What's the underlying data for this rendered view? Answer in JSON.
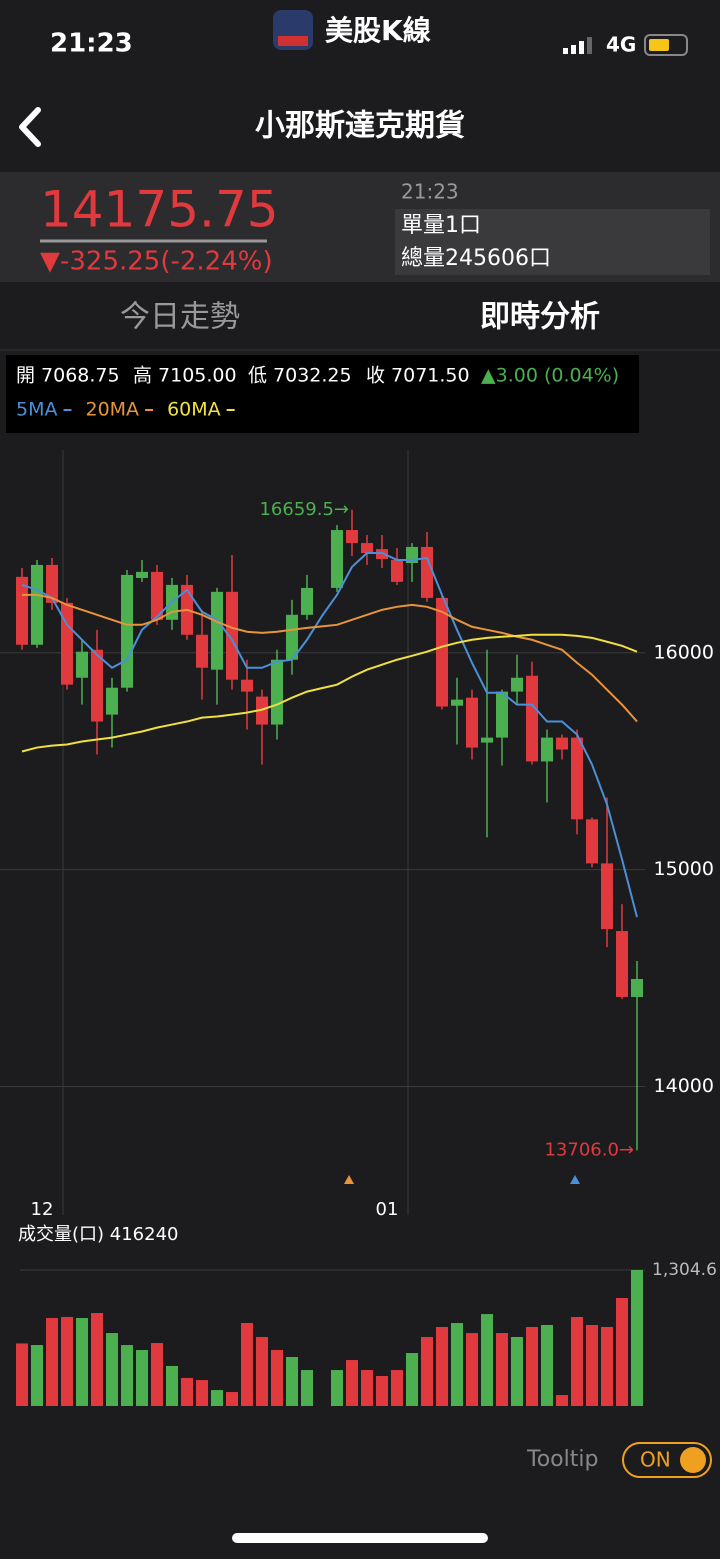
{
  "status_bar": {
    "time": "21:23",
    "app": "美股K線",
    "network": "4G"
  },
  "header": {
    "title": "小那斯達克期貨"
  },
  "quote": {
    "price": "14175.75",
    "change": "▼-325.25(-2.24%)",
    "time": "21:23",
    "unit_volume": "單量1口",
    "total_volume": "總量245606口"
  },
  "tabs": [
    "今日走勢",
    "即時分析"
  ],
  "info": {
    "items": [
      "開 7068.75",
      "高 7105.00",
      "低 7032.25",
      "收 7071.50"
    ],
    "change": "▲3.00 (0.04%)"
  },
  "chart_data": [
    {
      "type": "candlestick",
      "categories": [
        null,
        null,
        null,
        "12",
        null,
        null,
        null,
        null,
        null,
        null,
        null,
        null,
        null,
        null,
        null,
        null,
        null,
        null,
        null,
        null,
        null,
        null,
        null,
        null,
        null,
        null,
        "01",
        null,
        null,
        null,
        null,
        null,
        null,
        null,
        null,
        null,
        null,
        null,
        null,
        null,
        null,
        null
      ],
      "open": [
        16350,
        16037,
        16405,
        16230,
        15885,
        16014,
        15715,
        15839,
        16345,
        16373,
        16152,
        16313,
        16083,
        15922,
        16281,
        15876,
        15798,
        15669,
        15968,
        16175,
        null,
        16299,
        16566,
        16506,
        16478,
        16428,
        16414,
        16488,
        16253,
        15756,
        15793,
        15586,
        15609,
        15821,
        15894,
        15499,
        15609,
        15609,
        15232,
        15029,
        14717,
        14413
      ],
      "high": [
        16391,
        16428,
        16437,
        16253,
        16060,
        16106,
        15885,
        16382,
        16428,
        16405,
        16345,
        16359,
        16198,
        16299,
        16451,
        15968,
        15830,
        16014,
        16244,
        16359,
        null,
        16589,
        16659.5,
        16543,
        16543,
        16483,
        16506,
        16557,
        16267,
        15885,
        15830,
        16014,
        15830,
        15991,
        15959,
        15646,
        15623,
        15646,
        15241,
        15333,
        14841,
        14579
      ],
      "low": [
        16014,
        16023,
        16198,
        15830,
        15761,
        15531,
        15563,
        15821,
        16327,
        16129,
        16106,
        16060,
        15784,
        15761,
        15830,
        15646,
        15485,
        15600,
        15899,
        16152,
        null,
        16281,
        16446,
        16405,
        16391,
        16313,
        16327,
        16235,
        15738,
        15577,
        15508,
        15149,
        15480,
        15761,
        15485,
        15310,
        15508,
        15163,
        15011,
        14643,
        14404,
        13706
      ],
      "close": [
        16037,
        16405,
        16230,
        15853,
        16005,
        15683,
        15839,
        16359,
        16373,
        16152,
        16313,
        16083,
        15931,
        16281,
        15876,
        15821,
        15669,
        15968,
        16175,
        16299,
        null,
        16566,
        16506,
        16460,
        16432,
        16327,
        16488,
        16253,
        15752,
        15784,
        15563,
        15609,
        15821,
        15885,
        15499,
        15609,
        15554,
        15232,
        15029,
        14726,
        14413,
        14496
      ],
      "up_color": "#4caf50",
      "down_color": "#e0393e",
      "series": [
        {
          "name": "5MA",
          "color": "#4a90d9",
          "values": [
            16313,
            16290,
            16253,
            16129,
            16060,
            15991,
            15931,
            15968,
            16106,
            16166,
            16235,
            16290,
            16189,
            16152,
            16060,
            15931,
            15931,
            15959,
            15968,
            16060,
            16170,
            16267,
            16396,
            16460,
            16460,
            16428,
            16428,
            16437,
            16267,
            16106,
            15954,
            15816,
            15816,
            15761,
            15761,
            15683,
            15683,
            15623,
            15485,
            15301,
            15048,
            14781
          ]
        },
        {
          "name": "20MA",
          "color": "#e8943a",
          "values": [
            16267,
            16267,
            16253,
            16221,
            16198,
            16175,
            16152,
            16129,
            16129,
            16152,
            16189,
            16198,
            16175,
            16143,
            16115,
            16097,
            16092,
            16097,
            16106,
            16115,
            16122,
            16129,
            16152,
            16175,
            16198,
            16212,
            16221,
            16212,
            16189,
            16152,
            16120,
            16106,
            16092,
            16074,
            16060,
            16037,
            16014,
            15954,
            15899,
            15830,
            15761,
            15683
          ]
        },
        {
          "name": "60MA",
          "color": "#f0e040",
          "values": [
            15545,
            15563,
            15572,
            15577,
            15591,
            15600,
            15609,
            15623,
            15637,
            15655,
            15669,
            15683,
            15701,
            15706,
            15715,
            15724,
            15738,
            15761,
            15793,
            15821,
            15837,
            15853,
            15890,
            15922,
            15945,
            15968,
            15986,
            16005,
            16028,
            16046,
            16060,
            16069,
            16074,
            16078,
            16083,
            16083,
            16083,
            16078,
            16069,
            16051,
            16032,
            16005
          ]
        }
      ],
      "ylim": [
        13500,
        16935
      ],
      "yticks": [
        14000,
        15000,
        16000
      ],
      "grid": true,
      "annotations": [
        {
          "value": 16659.5,
          "label": "16659.5→",
          "color": "#4caf50"
        },
        {
          "value": 13706,
          "label": "13706.0→",
          "color": "#e0393e"
        }
      ]
    },
    {
      "type": "bar",
      "title": "成交量(口) 416240",
      "values": [
        600,
        585,
        844,
        854,
        844,
        892,
        700,
        585,
        537,
        604,
        384,
        269,
        249,
        153,
        134,
        796,
        662,
        537,
        470,
        345,
        null,
        345,
        441,
        345,
        288,
        345,
        508,
        662,
        758,
        796,
        700,
        882,
        700,
        662,
        758,
        777,
        105,
        854,
        777,
        758,
        1036,
        1304.6
      ],
      "colors": [
        "#e0393e",
        "#4caf50",
        "#e0393e",
        "#e0393e",
        "#4caf50",
        "#e0393e",
        "#4caf50",
        "#4caf50",
        "#4caf50",
        "#e0393e",
        "#4caf50",
        "#e0393e",
        "#e0393e",
        "#4caf50",
        "#e0393e",
        "#e0393e",
        "#e0393e",
        "#e0393e",
        "#4caf50",
        "#4caf50",
        null,
        "#4caf50",
        "#e0393e",
        "#e0393e",
        "#e0393e",
        "#e0393e",
        "#4caf50",
        "#e0393e",
        "#e0393e",
        "#4caf50",
        "#e0393e",
        "#4caf50",
        "#e0393e",
        "#4caf50",
        "#e0393e",
        "#4caf50",
        "#e0393e",
        "#e0393e",
        "#e0393e",
        "#e0393e",
        "#e0393e",
        "#4caf50"
      ],
      "ylim": [
        0,
        1304.6
      ],
      "yticks": [
        {
          "value": 1304.6,
          "label": "1,304.6"
        }
      ],
      "grid": true
    }
  ],
  "toggle": {
    "label": "Tooltip",
    "state": "ON"
  }
}
